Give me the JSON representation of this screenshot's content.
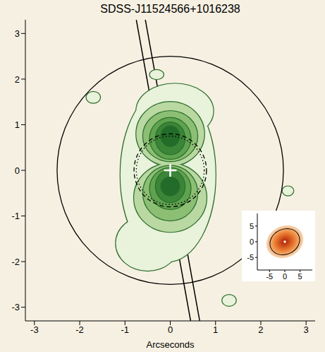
{
  "chart_data": [
    {
      "type": "contour",
      "title": "SDSS-J11524566+1016238",
      "x_label": "Arcseconds",
      "xlim": [
        -3.2,
        3.2
      ],
      "ylim": [
        -3.3,
        3.3
      ],
      "xticks": [
        -3,
        -2,
        -1,
        0,
        1,
        2,
        3
      ],
      "yticks": [
        -3,
        -2,
        -1,
        0,
        1,
        2,
        3
      ],
      "contours": [
        {
          "color": "#e9f2da",
          "ellipses": [
            [
              -0.05,
              -0.1,
              1.05,
              1.9
            ],
            [
              -0.5,
              -1.6,
              0.7,
              0.6
            ],
            [
              0.1,
              1.3,
              0.85,
              0.6
            ],
            [
              -1.7,
              1.6,
              0.15,
              0.12
            ],
            [
              -0.3,
              2.1,
              0.15,
              0.1
            ],
            [
              2.6,
              -0.45,
              0.12,
              0.1
            ],
            [
              1.3,
              -2.85,
              0.15,
              0.12
            ]
          ]
        },
        {
          "color": "#b9d8a2",
          "ellipses": [
            [
              0,
              0.8,
              0.75,
              0.7
            ],
            [
              0,
              -0.6,
              0.8,
              0.75
            ]
          ]
        },
        {
          "color": "#8cbf74",
          "ellipses": [
            [
              0,
              0.75,
              0.6,
              0.55
            ],
            [
              0,
              -0.5,
              0.6,
              0.6
            ]
          ]
        },
        {
          "color": "#5fa24f",
          "ellipses": [
            [
              0,
              0.7,
              0.45,
              0.45
            ],
            [
              0,
              -0.4,
              0.45,
              0.45
            ]
          ]
        },
        {
          "color": "#3b8538",
          "ellipses": [
            [
              0,
              0.7,
              0.32,
              0.35
            ],
            [
              0,
              -0.35,
              0.32,
              0.35
            ]
          ]
        },
        {
          "color": "#226b28",
          "ellipses": [
            [
              0,
              0.75,
              0.2,
              0.22
            ],
            [
              0,
              -0.35,
              0.2,
              0.2
            ]
          ]
        }
      ],
      "apertures": [
        {
          "x": 0,
          "y": 0,
          "r": 2.5,
          "line_style": "solid"
        },
        {
          "x": 0,
          "y": 0,
          "r": 0.8,
          "line_style": "dashed"
        },
        {
          "x": 0,
          "y": 0,
          "r": 0.75,
          "line_style": "dotted"
        }
      ],
      "slit": [
        [
          [
            -0.75,
            3.3
          ],
          [
            0.45,
            -3.3
          ]
        ],
        [
          [
            -0.55,
            3.3
          ],
          [
            0.65,
            -3.3
          ]
        ]
      ],
      "center": [
        0,
        0
      ],
      "marker": "plus"
    },
    {
      "type": "image",
      "xlim": [
        -9,
        9
      ],
      "ylim": [
        -9,
        9
      ],
      "xticks": [
        -5,
        0,
        5
      ],
      "yticks": [
        -5,
        0,
        5
      ],
      "ellipse": [
        0,
        0,
        5,
        4
      ],
      "colors": [
        "#b01e00",
        "#f08a3c",
        "#f7d8b8"
      ],
      "center": [
        0,
        0
      ],
      "marker": "dot"
    }
  ]
}
